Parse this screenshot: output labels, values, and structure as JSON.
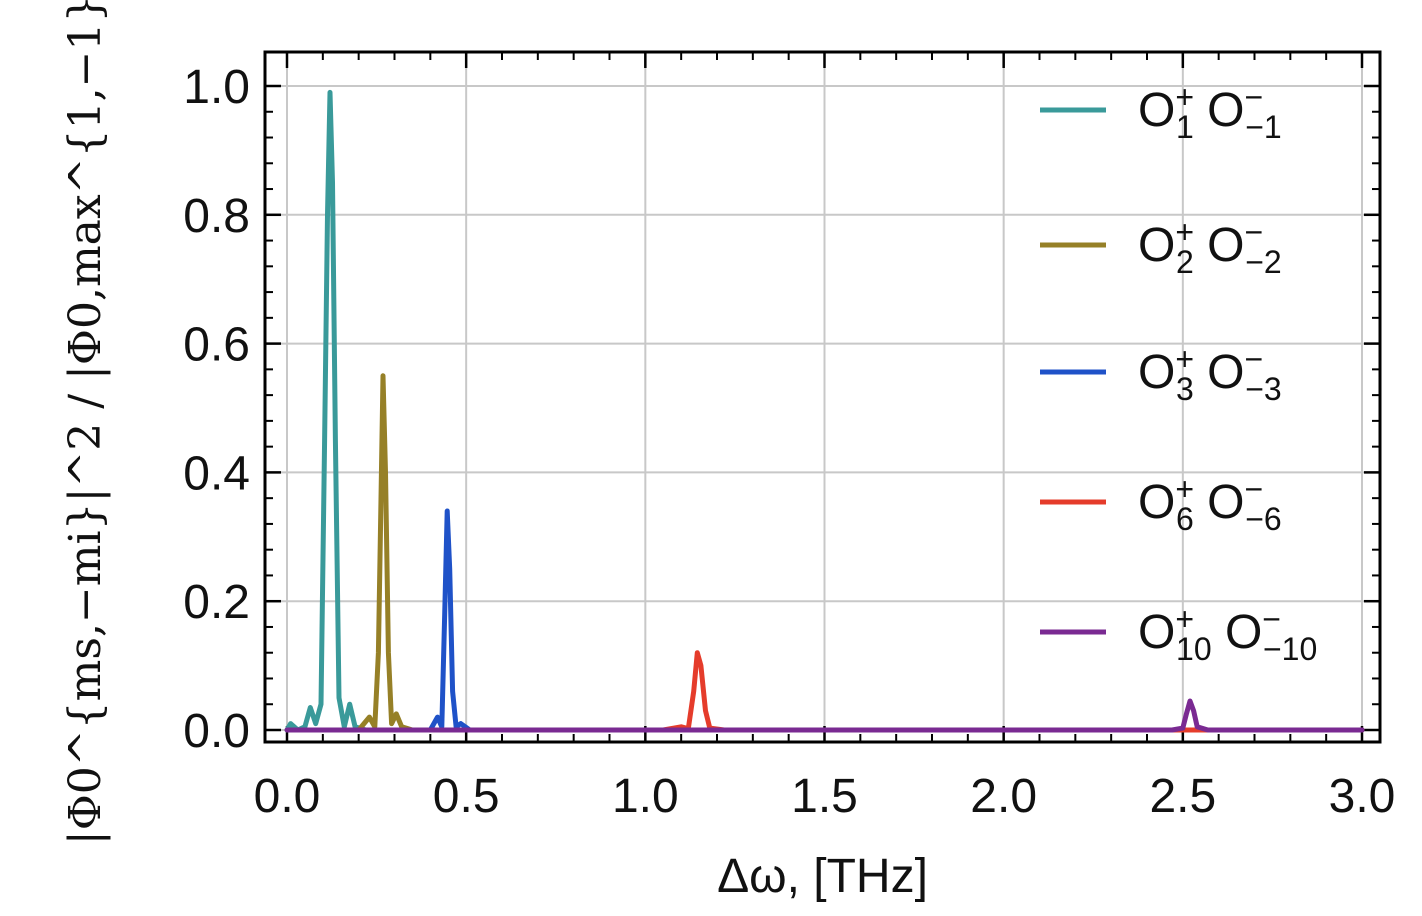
{
  "chart_data": {
    "type": "line",
    "xlabel": "Δω, [THz]",
    "ylabel": "|Φ0^{ms,−mi}|^2 / |Φ0,max^{1,−1}|^2",
    "xlim": [
      0.0,
      3.0
    ],
    "ylim": [
      0.0,
      1.0
    ],
    "xticks": [
      "0.0",
      "0.5",
      "1.0",
      "1.5",
      "2.0",
      "2.5",
      "3.0"
    ],
    "yticks": [
      "0.0",
      "0.2",
      "0.4",
      "0.6",
      "0.8",
      "1.0"
    ],
    "grid": true,
    "legend_position": "right",
    "series": [
      {
        "name": "O1+ O−1",
        "label": {
          "a": "O",
          "a_sub": "1",
          "a_sup": "+",
          "b": "O",
          "b_sub": "−1",
          "b_sup": "−"
        },
        "color": "#3a9a9a",
        "points": [
          [
            0.0,
            0.0
          ],
          [
            0.01,
            0.01
          ],
          [
            0.03,
            0.0
          ],
          [
            0.05,
            0.005
          ],
          [
            0.065,
            0.035
          ],
          [
            0.08,
            0.01
          ],
          [
            0.095,
            0.04
          ],
          [
            0.105,
            0.45
          ],
          [
            0.113,
            0.8
          ],
          [
            0.12,
            0.99
          ],
          [
            0.127,
            0.85
          ],
          [
            0.135,
            0.45
          ],
          [
            0.145,
            0.05
          ],
          [
            0.16,
            0.005
          ],
          [
            0.175,
            0.04
          ],
          [
            0.19,
            0.005
          ],
          [
            0.22,
            0.0
          ],
          [
            3.0,
            0.0
          ]
        ]
      },
      {
        "name": "O2+ O−2",
        "label": {
          "a": "O",
          "a_sub": "2",
          "a_sup": "+",
          "b": "O",
          "b_sub": "−2",
          "b_sup": "−"
        },
        "color": "#968027",
        "points": [
          [
            0.15,
            0.0
          ],
          [
            0.2,
            0.0
          ],
          [
            0.23,
            0.02
          ],
          [
            0.245,
            0.005
          ],
          [
            0.255,
            0.12
          ],
          [
            0.262,
            0.35
          ],
          [
            0.268,
            0.55
          ],
          [
            0.275,
            0.4
          ],
          [
            0.283,
            0.12
          ],
          [
            0.292,
            0.01
          ],
          [
            0.305,
            0.025
          ],
          [
            0.32,
            0.005
          ],
          [
            0.35,
            0.0
          ],
          [
            3.0,
            0.0
          ]
        ]
      },
      {
        "name": "O3+ O−3",
        "label": {
          "a": "O",
          "a_sub": "3",
          "a_sup": "+",
          "b": "O",
          "b_sub": "−3",
          "b_sup": "−"
        },
        "color": "#1f52c8",
        "points": [
          [
            0.35,
            0.0
          ],
          [
            0.4,
            0.0
          ],
          [
            0.42,
            0.02
          ],
          [
            0.432,
            0.005
          ],
          [
            0.44,
            0.18
          ],
          [
            0.447,
            0.34
          ],
          [
            0.454,
            0.25
          ],
          [
            0.462,
            0.06
          ],
          [
            0.472,
            0.005
          ],
          [
            0.485,
            0.01
          ],
          [
            0.51,
            0.0
          ],
          [
            3.0,
            0.0
          ]
        ]
      },
      {
        "name": "O6+ O−6",
        "label": {
          "a": "O",
          "a_sub": "6",
          "a_sup": "+",
          "b": "O",
          "b_sub": "−6",
          "b_sup": "−"
        },
        "color": "#e53c2b",
        "points": [
          [
            1.05,
            0.0
          ],
          [
            1.1,
            0.005
          ],
          [
            1.12,
            0.002
          ],
          [
            1.135,
            0.06
          ],
          [
            1.145,
            0.12
          ],
          [
            1.155,
            0.1
          ],
          [
            1.168,
            0.03
          ],
          [
            1.18,
            0.003
          ],
          [
            1.22,
            0.0
          ],
          [
            3.0,
            0.0
          ]
        ]
      },
      {
        "name": "O10+ O−10",
        "label": {
          "a": "O",
          "a_sub": "10",
          "a_sup": "+",
          "b": "O",
          "b_sub": "−10",
          "b_sup": "−"
        },
        "color": "#7a2a92",
        "points": [
          [
            0.0,
            0.0
          ],
          [
            2.47,
            0.0
          ],
          [
            2.5,
            0.003
          ],
          [
            2.51,
            0.025
          ],
          [
            2.52,
            0.045
          ],
          [
            2.53,
            0.03
          ],
          [
            2.54,
            0.005
          ],
          [
            2.57,
            0.0
          ],
          [
            3.0,
            0.0
          ]
        ]
      }
    ]
  }
}
